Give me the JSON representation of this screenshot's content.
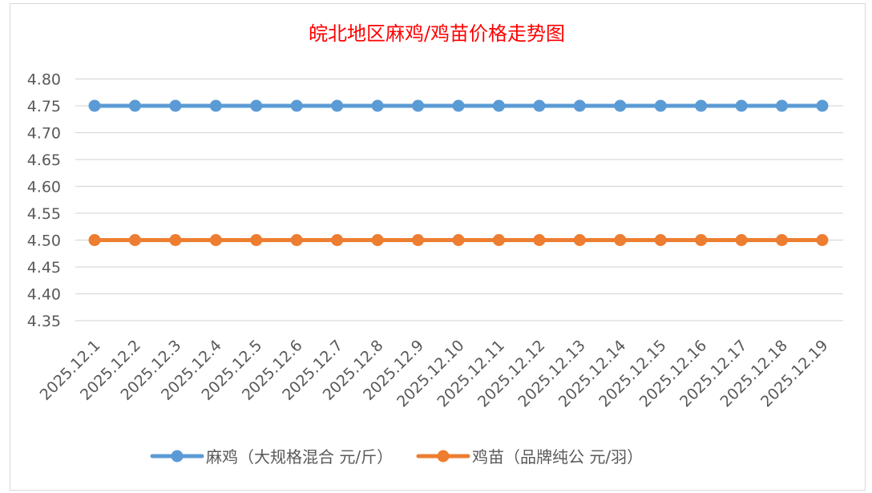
{
  "chart_data": {
    "type": "line",
    "title": "皖北地区麻鸡/鸡苗价格走势图",
    "xlabel": "",
    "ylabel": "",
    "ylim": [
      4.35,
      4.8
    ],
    "yticks": [
      "4.80",
      "4.75",
      "4.70",
      "4.65",
      "4.60",
      "4.55",
      "4.50",
      "4.45",
      "4.40",
      "4.35"
    ],
    "grid": true,
    "legend_position": "bottom",
    "categories": [
      "2025.12.1",
      "2025.12.2",
      "2025.12.3",
      "2025.12.4",
      "2025.12.5",
      "2025.12.6",
      "2025.12.7",
      "2025.12.8",
      "2025.12.9",
      "2025.12.10",
      "2025.12.11",
      "2025.12.12",
      "2025.12.13",
      "2025.12.14",
      "2025.12.15",
      "2025.12.16",
      "2025.12.17",
      "2025.12.18",
      "2025.12.19"
    ],
    "series": [
      {
        "name": "麻鸡（大规格混合 元/斤）",
        "color": "#5b9bd5",
        "values": [
          4.75,
          4.75,
          4.75,
          4.75,
          4.75,
          4.75,
          4.75,
          4.75,
          4.75,
          4.75,
          4.75,
          4.75,
          4.75,
          4.75,
          4.75,
          4.75,
          4.75,
          4.75,
          4.75
        ]
      },
      {
        "name": "鸡苗（品牌纯公 元/羽）",
        "color": "#ed7d31",
        "values": [
          4.5,
          4.5,
          4.5,
          4.5,
          4.5,
          4.5,
          4.5,
          4.5,
          4.5,
          4.5,
          4.5,
          4.5,
          4.5,
          4.5,
          4.5,
          4.5,
          4.5,
          4.5,
          4.5
        ]
      }
    ]
  }
}
